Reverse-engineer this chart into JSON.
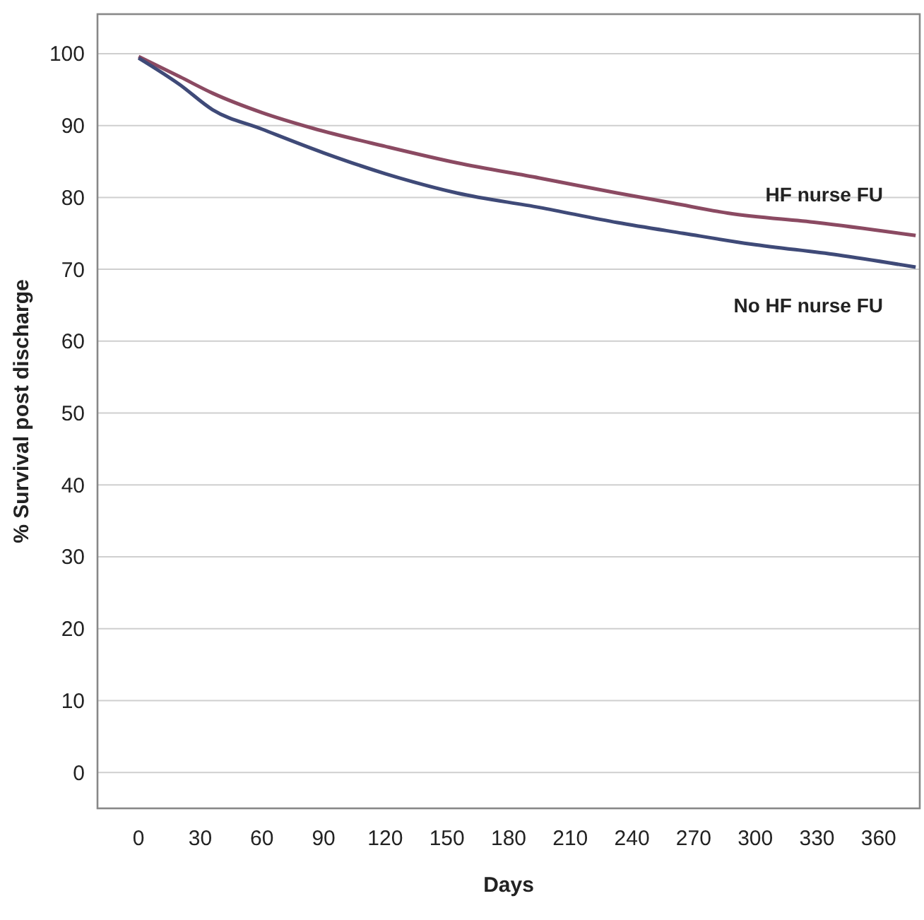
{
  "chart_data": {
    "type": "line",
    "xlabel": "Days",
    "ylabel": "% Survival post discharge",
    "xlim": [
      -20,
      380
    ],
    "ylim": [
      -5,
      105.5
    ],
    "xticks": [
      0,
      30,
      60,
      90,
      120,
      150,
      180,
      210,
      240,
      270,
      300,
      330,
      360
    ],
    "yticks": [
      0,
      10,
      20,
      30,
      40,
      50,
      60,
      70,
      80,
      90,
      100
    ],
    "grid": "y",
    "marker": "none",
    "line_style": "solid",
    "series": [
      {
        "name": "HF nurse FU",
        "color": "#8b4a62",
        "x": [
          0,
          20,
          36,
          60,
          85,
          120,
          155,
          195,
          233,
          260,
          287,
          330,
          378
        ],
        "values": [
          99.6,
          96.8,
          94.5,
          91.8,
          89.6,
          87.1,
          84.8,
          82.7,
          80.6,
          79.2,
          77.8,
          76.5,
          74.7
        ]
      },
      {
        "name": "No HF nurse FU",
        "color": "#3f4a78",
        "x": [
          0,
          20,
          36,
          60,
          90,
          120,
          155,
          195,
          233,
          265,
          298,
          340,
          378
        ],
        "values": [
          99.4,
          95.7,
          92.2,
          89.5,
          86.2,
          83.3,
          80.6,
          78.6,
          76.5,
          75,
          73.5,
          72,
          70.3
        ]
      }
    ]
  }
}
